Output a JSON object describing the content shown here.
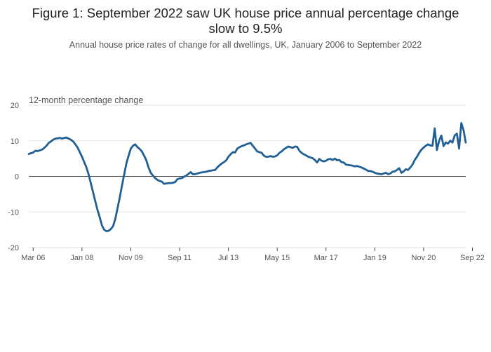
{
  "chart_data": {
    "type": "line",
    "title_lines": [
      "Figure 1: September 2022 saw UK house price annual percentage change",
      "slow to 9.5%"
    ],
    "subtitle": "Annual house price rates of change for all dwellings, UK, January 2006 to September 2022",
    "ylabel": "12-month percentage change",
    "xlabel": "",
    "ylim": [
      -20,
      20
    ],
    "yticks": [
      20,
      10,
      0,
      -10,
      -20
    ],
    "xticks": [
      {
        "label": "Mar 06",
        "t": 2
      },
      {
        "label": "Jan 08",
        "t": 24
      },
      {
        "label": "Nov 09",
        "t": 46
      },
      {
        "label": "Sep 11",
        "t": 68
      },
      {
        "label": "Jul 13",
        "t": 90
      },
      {
        "label": "May 15",
        "t": 112
      },
      {
        "label": "Mar 17",
        "t": 134
      },
      {
        "label": "Jan 19",
        "t": 156
      },
      {
        "label": "Nov 20",
        "t": 178
      },
      {
        "label": "Sep 22",
        "t": 200
      }
    ],
    "x_start": "Jan 2006",
    "x_end": "Sep 2022",
    "grid": true,
    "line_color": "#206095",
    "series": [
      {
        "values": [
          6.3,
          6.5,
          6.7,
          7.2,
          7.1,
          7.3,
          7.5,
          8.0,
          8.6,
          9.4,
          9.8,
          10.3,
          10.6,
          10.7,
          10.8,
          10.6,
          10.8,
          10.9,
          10.6,
          10.3,
          9.8,
          9.0,
          8.1,
          6.8,
          5.5,
          4.0,
          2.5,
          0.5,
          -2.0,
          -4.5,
          -7.0,
          -9.5,
          -11.5,
          -13.8,
          -15.0,
          -15.4,
          -15.3,
          -14.8,
          -14.0,
          -12.0,
          -9.0,
          -6.0,
          -2.7,
          0.5,
          3.6,
          5.8,
          7.8,
          8.6,
          9.0,
          8.2,
          7.7,
          7.0,
          5.8,
          4.5,
          2.5,
          1.0,
          0.2,
          -0.5,
          -1.0,
          -1.3,
          -1.5,
          -2.1,
          -2.0,
          -1.9,
          -1.9,
          -1.8,
          -1.6,
          -0.8,
          -0.6,
          -0.5,
          -0.1,
          0.2,
          0.7,
          1.2,
          0.6,
          0.6,
          0.8,
          1.0,
          1.1,
          1.2,
          1.3,
          1.5,
          1.6,
          1.7,
          1.8,
          2.5,
          3.1,
          3.6,
          4.0,
          4.5,
          5.5,
          6.2,
          6.8,
          6.7,
          7.8,
          8.2,
          8.5,
          8.7,
          9.0,
          9.2,
          9.4,
          8.6,
          7.8,
          7.0,
          6.8,
          6.6,
          5.8,
          5.5,
          5.5,
          5.7,
          5.5,
          5.6,
          5.9,
          6.6,
          7.0,
          7.6,
          8.0,
          8.4,
          8.2,
          8.0,
          8.4,
          8.3,
          7.2,
          6.6,
          6.2,
          5.9,
          5.5,
          5.3,
          5.1,
          4.6,
          3.9,
          4.9,
          4.4,
          4.2,
          4.4,
          4.8,
          4.9,
          4.6,
          5.0,
          4.5,
          4.6,
          4.0,
          3.9,
          3.3,
          3.2,
          3.1,
          3.0,
          2.8,
          2.9,
          2.7,
          2.5,
          2.2,
          1.9,
          1.5,
          1.5,
          1.3,
          1.0,
          0.8,
          0.7,
          0.6,
          0.8,
          1.0,
          0.6,
          0.8,
          1.3,
          1.4,
          1.8,
          2.3,
          1.0,
          1.4,
          2.0,
          1.8,
          2.5,
          3.3,
          4.6,
          5.5,
          6.6,
          7.5,
          8.1,
          8.6,
          9.0,
          8.7,
          8.6,
          13.5,
          7.4,
          10.0,
          11.5,
          8.5,
          9.5,
          9.2,
          10.0,
          9.5,
          11.5,
          12.0,
          7.8,
          15.0,
          13.0,
          9.5
        ]
      }
    ]
  }
}
